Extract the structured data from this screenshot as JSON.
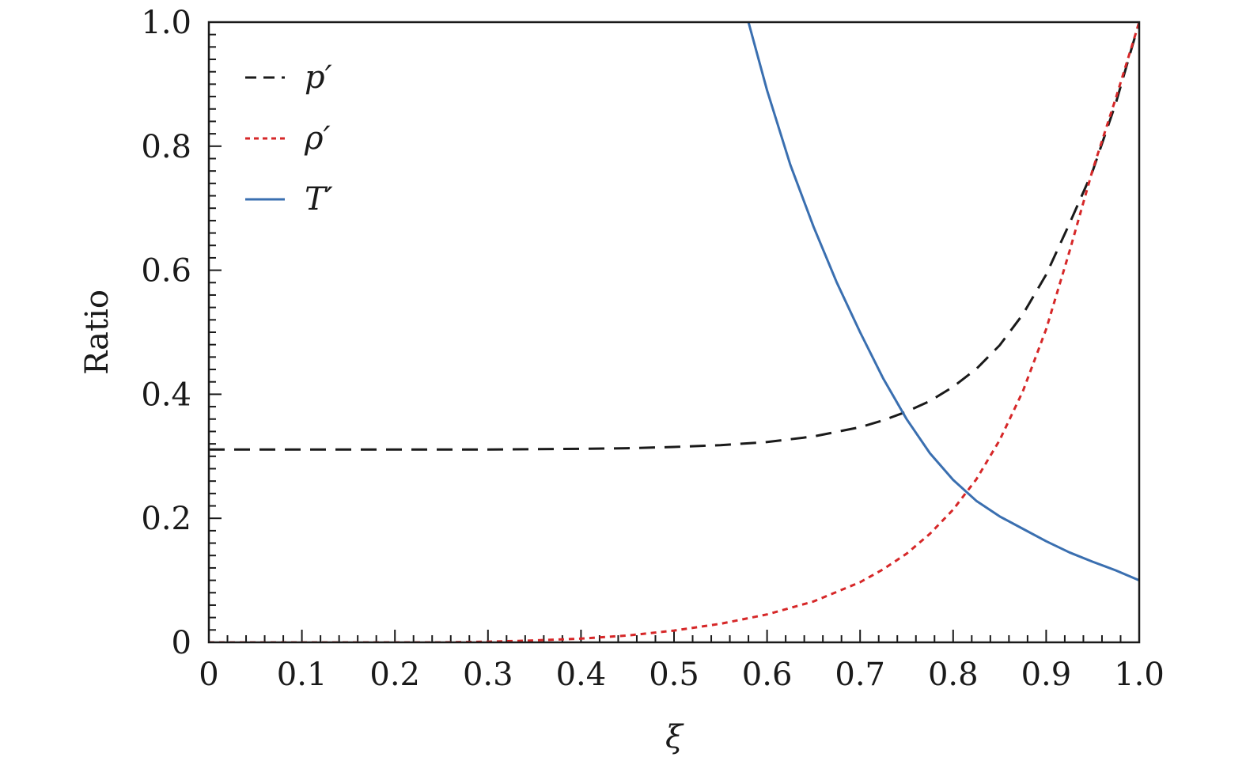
{
  "chart_data": {
    "type": "line",
    "xlabel": "ξ",
    "ylabel": "Ratio",
    "xlim": [
      0,
      1.0
    ],
    "ylim": [
      0,
      1.0
    ],
    "x_ticks": [
      {
        "v": 0,
        "label": "0"
      },
      {
        "v": 0.1,
        "label": "0.1"
      },
      {
        "v": 0.2,
        "label": "0.2"
      },
      {
        "v": 0.3,
        "label": "0.3"
      },
      {
        "v": 0.4,
        "label": "0.4"
      },
      {
        "v": 0.5,
        "label": "0.5"
      },
      {
        "v": 0.6,
        "label": "0.6"
      },
      {
        "v": 0.7,
        "label": "0.7"
      },
      {
        "v": 0.8,
        "label": "0.8"
      },
      {
        "v": 0.9,
        "label": "0.9"
      },
      {
        "v": 1.0,
        "label": "1.0"
      }
    ],
    "y_ticks": [
      {
        "v": 0,
        "label": "0"
      },
      {
        "v": 0.2,
        "label": "0.2"
      },
      {
        "v": 0.4,
        "label": "0.4"
      },
      {
        "v": 0.6,
        "label": "0.6"
      },
      {
        "v": 0.8,
        "label": "0.8"
      },
      {
        "v": 1.0,
        "label": "1.0"
      }
    ],
    "minor_x_step": 0.02,
    "minor_y_step": 0.02,
    "grid": false,
    "legend_position": "top-left",
    "series": [
      {
        "name": "p′",
        "color": "#1a1a1a",
        "style": "dashed",
        "x": [
          0,
          0.1,
          0.2,
          0.3,
          0.4,
          0.45,
          0.5,
          0.55,
          0.6,
          0.65,
          0.7,
          0.725,
          0.75,
          0.775,
          0.8,
          0.825,
          0.85,
          0.875,
          0.9,
          0.925,
          0.95,
          0.975,
          1.0
        ],
        "y": [
          0.311,
          0.311,
          0.311,
          0.311,
          0.312,
          0.313,
          0.315,
          0.318,
          0.323,
          0.332,
          0.347,
          0.358,
          0.372,
          0.389,
          0.412,
          0.441,
          0.479,
          0.529,
          0.593,
          0.675,
          0.76,
          0.87,
          1.0
        ]
      },
      {
        "name": "ρ′",
        "color": "#d62728",
        "style": "dotted",
        "x": [
          0,
          0.25,
          0.3,
          0.35,
          0.4,
          0.45,
          0.5,
          0.55,
          0.6,
          0.65,
          0.7,
          0.725,
          0.75,
          0.775,
          0.8,
          0.825,
          0.85,
          0.875,
          0.9,
          0.925,
          0.95,
          0.975,
          1.0
        ],
        "y": [
          0,
          0,
          0.001,
          0.003,
          0.006,
          0.011,
          0.019,
          0.03,
          0.045,
          0.066,
          0.097,
          0.118,
          0.143,
          0.175,
          0.214,
          0.263,
          0.326,
          0.405,
          0.505,
          0.63,
          0.762,
          0.878,
          1.0
        ]
      },
      {
        "name": "T′",
        "color": "#3a6fb0",
        "style": "solid",
        "x": [
          0.58,
          0.6,
          0.625,
          0.65,
          0.675,
          0.7,
          0.725,
          0.75,
          0.775,
          0.8,
          0.825,
          0.85,
          0.875,
          0.9,
          0.925,
          0.95,
          0.975,
          1.0
        ],
        "y": [
          1.0,
          0.89,
          0.77,
          0.67,
          0.58,
          0.5,
          0.425,
          0.36,
          0.305,
          0.262,
          0.228,
          0.203,
          0.183,
          0.163,
          0.145,
          0.13,
          0.116,
          0.1
        ]
      }
    ]
  }
}
